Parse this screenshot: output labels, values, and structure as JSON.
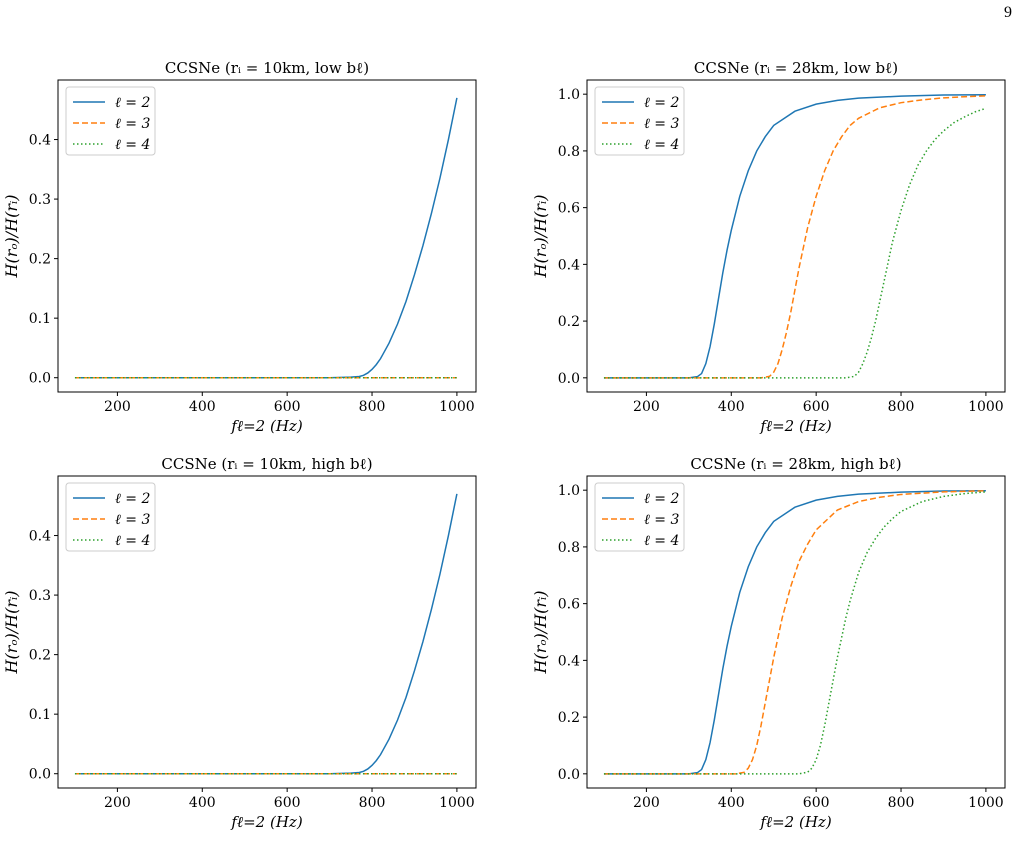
{
  "page": {
    "number": "9"
  },
  "legend_labels": [
    "ℓ = 2",
    "ℓ = 3",
    "ℓ = 4"
  ],
  "colors": {
    "l2": "#1f77b4",
    "l3": "#ff7f0e",
    "l4": "#2ca02c"
  },
  "chart_data": [
    {
      "type": "line",
      "title": "CCSNe (rᵢ = 10km, low bℓ)",
      "xlabel": "fℓ=2 (Hz)",
      "ylabel": "H(rₒ)/H(rᵢ)",
      "xlim": [
        60,
        1045
      ],
      "ylim": [
        -0.024,
        0.5
      ],
      "xticks": [
        200,
        400,
        600,
        800,
        1000
      ],
      "yticks": [
        0.0,
        0.1,
        0.2,
        0.3,
        0.4
      ],
      "ytick_labels": [
        "0.0",
        "0.1",
        "0.2",
        "0.3",
        "0.4"
      ],
      "legend": "top-left",
      "grid": false,
      "series": [
        {
          "name": "ℓ = 2",
          "style": "solid",
          "x": [
            100,
            700,
            750,
            770,
            780,
            790,
            800,
            810,
            820,
            840,
            860,
            880,
            900,
            920,
            940,
            960,
            980,
            1000
          ],
          "y": [
            0,
            0,
            0.001,
            0.002,
            0.004,
            0.008,
            0.014,
            0.022,
            0.032,
            0.058,
            0.09,
            0.128,
            0.173,
            0.222,
            0.276,
            0.335,
            0.4,
            0.47
          ]
        },
        {
          "name": "ℓ = 3",
          "style": "dashed",
          "x": [
            100,
            1000
          ],
          "y": [
            0,
            0
          ]
        },
        {
          "name": "ℓ = 4",
          "style": "dotted",
          "x": [
            100,
            1000
          ],
          "y": [
            0,
            0
          ]
        }
      ]
    },
    {
      "type": "line",
      "title": "CCSNe (rᵢ = 28km, low bℓ)",
      "xlabel": "fℓ=2 (Hz)",
      "ylabel": "H(rₒ)/H(rᵢ)",
      "xlim": [
        60,
        1045
      ],
      "ylim": [
        -0.05,
        1.05
      ],
      "xticks": [
        200,
        400,
        600,
        800,
        1000
      ],
      "yticks": [
        0.0,
        0.2,
        0.4,
        0.6,
        0.8,
        1.0
      ],
      "ytick_labels": [
        "0.0",
        "0.2",
        "0.4",
        "0.6",
        "0.8",
        "1.0"
      ],
      "legend": "top-left",
      "grid": false,
      "series": [
        {
          "name": "ℓ = 2",
          "style": "solid",
          "x": [
            100,
            300,
            320,
            330,
            340,
            350,
            360,
            370,
            380,
            390,
            400,
            420,
            440,
            460,
            480,
            500,
            550,
            600,
            650,
            700,
            800,
            900,
            1000
          ],
          "y": [
            0,
            0,
            0.004,
            0.015,
            0.05,
            0.11,
            0.19,
            0.28,
            0.37,
            0.45,
            0.52,
            0.64,
            0.73,
            0.8,
            0.85,
            0.89,
            0.94,
            0.965,
            0.978,
            0.986,
            0.993,
            0.997,
            0.998
          ]
        },
        {
          "name": "ℓ = 3",
          "style": "dashed",
          "x": [
            100,
            470,
            490,
            500,
            510,
            520,
            530,
            540,
            550,
            560,
            570,
            580,
            600,
            620,
            640,
            660,
            680,
            700,
            750,
            800,
            850,
            900,
            950,
            1000
          ],
          "y": [
            0,
            0,
            0.005,
            0.02,
            0.05,
            0.1,
            0.16,
            0.23,
            0.31,
            0.39,
            0.46,
            0.53,
            0.64,
            0.73,
            0.8,
            0.85,
            0.89,
            0.915,
            0.952,
            0.97,
            0.98,
            0.987,
            0.991,
            0.994
          ]
        },
        {
          "name": "ℓ = 4",
          "style": "dotted",
          "x": [
            100,
            670,
            690,
            700,
            710,
            720,
            730,
            740,
            750,
            760,
            770,
            780,
            800,
            820,
            840,
            860,
            880,
            900,
            925,
            950,
            975,
            1000
          ],
          "y": [
            0,
            0,
            0.005,
            0.02,
            0.05,
            0.09,
            0.14,
            0.2,
            0.27,
            0.34,
            0.41,
            0.48,
            0.59,
            0.68,
            0.75,
            0.8,
            0.84,
            0.87,
            0.9,
            0.92,
            0.938,
            0.95
          ]
        }
      ]
    },
    {
      "type": "line",
      "title": "CCSNe (rᵢ = 10km, high bℓ)",
      "xlabel": "fℓ=2 (Hz)",
      "ylabel": "H(rₒ)/H(rᵢ)",
      "xlim": [
        60,
        1045
      ],
      "ylim": [
        -0.024,
        0.5
      ],
      "xticks": [
        200,
        400,
        600,
        800,
        1000
      ],
      "yticks": [
        0.0,
        0.1,
        0.2,
        0.3,
        0.4
      ],
      "ytick_labels": [
        "0.0",
        "0.1",
        "0.2",
        "0.3",
        "0.4"
      ],
      "legend": "top-left",
      "grid": false,
      "series": [
        {
          "name": "ℓ = 2",
          "style": "solid",
          "x": [
            100,
            700,
            750,
            770,
            780,
            790,
            800,
            810,
            820,
            840,
            860,
            880,
            900,
            920,
            940,
            960,
            980,
            1000
          ],
          "y": [
            0,
            0,
            0.001,
            0.002,
            0.004,
            0.008,
            0.014,
            0.022,
            0.032,
            0.058,
            0.09,
            0.128,
            0.173,
            0.222,
            0.276,
            0.335,
            0.4,
            0.47
          ]
        },
        {
          "name": "ℓ = 3",
          "style": "dashed",
          "x": [
            100,
            1000
          ],
          "y": [
            0,
            0
          ]
        },
        {
          "name": "ℓ = 4",
          "style": "dotted",
          "x": [
            100,
            1000
          ],
          "y": [
            0,
            0
          ]
        }
      ]
    },
    {
      "type": "line",
      "title": "CCSNe (rᵢ = 28km, high bℓ)",
      "xlabel": "fℓ=2 (Hz)",
      "ylabel": "H(rₒ)/H(rᵢ)",
      "xlim": [
        60,
        1045
      ],
      "ylim": [
        -0.05,
        1.05
      ],
      "xticks": [
        200,
        400,
        600,
        800,
        1000
      ],
      "yticks": [
        0.0,
        0.2,
        0.4,
        0.6,
        0.8,
        1.0
      ],
      "ytick_labels": [
        "0.0",
        "0.2",
        "0.4",
        "0.6",
        "0.8",
        "1.0"
      ],
      "legend": "top-left",
      "grid": false,
      "series": [
        {
          "name": "ℓ = 2",
          "style": "solid",
          "x": [
            100,
            300,
            320,
            330,
            340,
            350,
            360,
            370,
            380,
            390,
            400,
            420,
            440,
            460,
            480,
            500,
            550,
            600,
            650,
            700,
            800,
            900,
            1000
          ],
          "y": [
            0,
            0,
            0.004,
            0.015,
            0.05,
            0.11,
            0.19,
            0.28,
            0.37,
            0.45,
            0.52,
            0.64,
            0.73,
            0.8,
            0.85,
            0.89,
            0.94,
            0.965,
            0.978,
            0.986,
            0.993,
            0.997,
            0.998
          ]
        },
        {
          "name": "ℓ = 3",
          "style": "dashed",
          "x": [
            100,
            410,
            430,
            440,
            450,
            460,
            470,
            480,
            490,
            500,
            510,
            520,
            540,
            560,
            580,
            600,
            650,
            700,
            750,
            800,
            900,
            1000
          ],
          "y": [
            0,
            0,
            0.005,
            0.02,
            0.05,
            0.1,
            0.17,
            0.25,
            0.33,
            0.41,
            0.48,
            0.55,
            0.66,
            0.75,
            0.81,
            0.86,
            0.93,
            0.96,
            0.975,
            0.985,
            0.994,
            0.998
          ]
        },
        {
          "name": "ℓ = 4",
          "style": "dotted",
          "x": [
            100,
            560,
            580,
            590,
            600,
            610,
            620,
            630,
            640,
            650,
            660,
            670,
            680,
            700,
            720,
            740,
            760,
            780,
            800,
            850,
            900,
            950,
            1000
          ],
          "y": [
            0,
            0,
            0.006,
            0.02,
            0.05,
            0.1,
            0.17,
            0.25,
            0.33,
            0.41,
            0.48,
            0.55,
            0.61,
            0.71,
            0.78,
            0.83,
            0.87,
            0.9,
            0.925,
            0.96,
            0.978,
            0.988,
            0.994
          ]
        }
      ]
    }
  ]
}
